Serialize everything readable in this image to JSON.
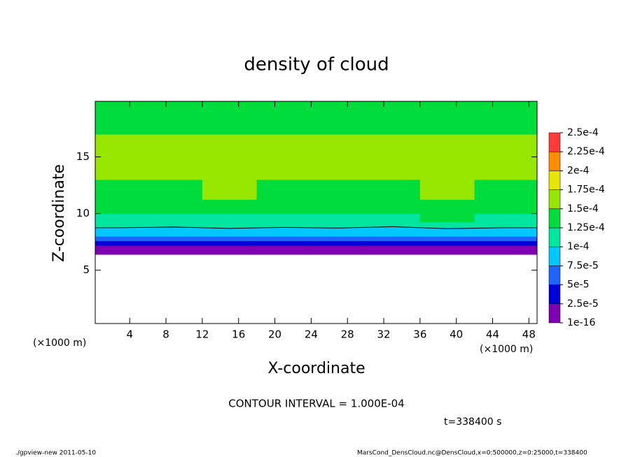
{
  "chart_data": {
    "type": "contour",
    "title": "density of cloud",
    "xlabel": "X-coordinate",
    "ylabel": "Z-coordinate",
    "x_unit": "(×1000 m)",
    "x": [
      3,
      9,
      15,
      21,
      27,
      33,
      39,
      45
    ],
    "y": [
      6.6,
      7.0,
      7.4,
      7.8,
      8.2,
      8.6,
      9.0,
      9.5,
      10.5,
      12,
      14,
      16,
      18,
      19.5
    ],
    "z": [
      [
        1e-05,
        1.2e-05,
        8e-06,
        1e-05,
        1.1e-05,
        9e-06,
        1e-05,
        1.2e-05
      ],
      [
        2e-05,
        2.2e-05,
        1.8e-05,
        2e-05,
        2.1e-05,
        1.9e-05,
        2.3e-05,
        2e-05
      ],
      [
        4e-05,
        4.2e-05,
        3.8e-05,
        4.1e-05,
        4e-05,
        3.9e-05,
        4.3e-05,
        4e-05
      ],
      [
        6.5e-05,
        6.2e-05,
        6.8e-05,
        6.4e-05,
        6.6e-05,
        6.3e-05,
        6.9e-05,
        6.5e-05
      ],
      [
        8.5e-05,
        8.2e-05,
        8.8e-05,
        8.4e-05,
        8.6e-05,
        8.3e-05,
        8.9e-05,
        8.5e-05
      ],
      [
        9.5e-05,
        9.3e-05,
        9.7e-05,
        9.4e-05,
        9.6e-05,
        9.2e-05,
        9.8e-05,
        9.5e-05
      ],
      [
        0.000108,
        0.000106,
        0.00011,
        0.000107,
        0.000109,
        0.000105,
        0.00011,
        0.000108
      ],
      [
        0.000122,
        0.00012,
        0.000124,
        0.000121,
        0.000123,
        0.00012,
        0.000125,
        0.000122
      ],
      [
        0.000135,
        0.000133,
        0.000137,
        0.000134,
        0.000136,
        0.000132,
        0.000138,
        0.000135
      ],
      [
        0.000145,
        0.000147,
        0.000152,
        0.000146,
        0.000148,
        0.000144,
        0.00015,
        0.000147
      ],
      [
        0.000158,
        0.000155,
        0.00016,
        0.000157,
        0.000153,
        0.000156,
        0.000162,
        0.000158
      ],
      [
        0.000155,
        0.000152,
        0.000157,
        0.000154,
        0.00015,
        0.000153,
        0.000158,
        0.000156
      ],
      [
        0.000145,
        0.000143,
        0.000148,
        0.000146,
        0.000144,
        0.000142,
        0.000147,
        0.000145
      ],
      [
        0.00014,
        0.000138,
        0.000142,
        0.000141,
        0.000139,
        0.000137,
        0.000143,
        0.00014
      ]
    ],
    "xlim": [
      0.2,
      48.9
    ],
    "ylim": [
      0.3,
      19.9
    ],
    "xticks": [
      4,
      8,
      12,
      16,
      20,
      24,
      28,
      32,
      36,
      40,
      44,
      48
    ],
    "yticks": [
      5,
      10,
      15
    ],
    "contour_levels": [
      0.0001
    ],
    "colorbar": {
      "ticks": [
        {
          "value": 1e-16,
          "label": "1e-16"
        },
        {
          "value": 2.5e-05,
          "label": "2.5e-5"
        },
        {
          "value": 5e-05,
          "label": "5e-5"
        },
        {
          "value": 7.5e-05,
          "label": "7.5e-5"
        },
        {
          "value": 0.0001,
          "label": "1e-4"
        },
        {
          "value": 0.000125,
          "label": "1.25e-4"
        },
        {
          "value": 0.00015,
          "label": "1.5e-4"
        },
        {
          "value": 0.000175,
          "label": "1.75e-4"
        },
        {
          "value": 0.0002,
          "label": "2e-4"
        },
        {
          "value": 0.000225,
          "label": "2.25e-4"
        },
        {
          "value": 0.00025,
          "label": "2.5e-4"
        }
      ],
      "colors": [
        "#7f00b2",
        "#0000d8",
        "#1e64ff",
        "#00c8ff",
        "#00e6a0",
        "#00dc3c",
        "#96e600",
        "#e6e600",
        "#ff8c00",
        "#ff3c3c"
      ]
    },
    "annotations": {
      "contour_interval": "CONTOUR INTERVAL = 1.000E-04",
      "time": "t=338400 s",
      "footer_left": "./gpview-new  2011-05-10",
      "footer_right": "MarsCond_DensCloud.nc@DensCloud,x=0:500000,z=0:25000,t=338400"
    }
  }
}
